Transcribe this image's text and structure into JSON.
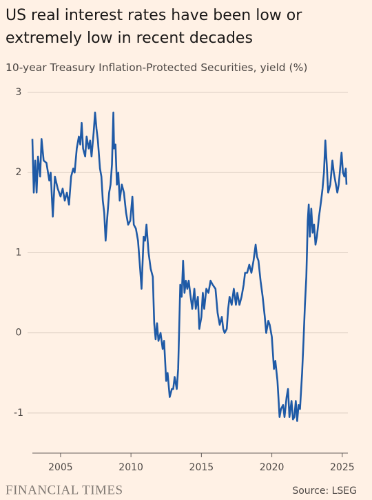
{
  "chart_data": {
    "type": "line",
    "title": "US real interest rates have been low or extremely low in recent decades",
    "subtitle": "10-year Treasury Inflation-Protected Securities, yield (%)",
    "source": "Source: LSEG",
    "brand": "FINANCIAL TIMES",
    "color": "#1f5aa6",
    "grid": true,
    "xlim": [
      2003,
      2025.4
    ],
    "xticks": [
      2005,
      2010,
      2015,
      2020,
      2025
    ],
    "ylim": [
      -1.5,
      3
    ],
    "yticks": [
      3,
      2,
      1,
      0,
      -1
    ],
    "x": [
      2003.0,
      2003.1,
      2003.2,
      2003.3,
      2003.4,
      2003.55,
      2003.65,
      2003.8,
      2004.0,
      2004.2,
      2004.3,
      2004.45,
      2004.6,
      2004.8,
      2005.0,
      2005.15,
      2005.3,
      2005.45,
      2005.6,
      2005.75,
      2005.9,
      2006.0,
      2006.15,
      2006.3,
      2006.4,
      2006.5,
      2006.6,
      2006.75,
      2006.85,
      2007.0,
      2007.1,
      2007.2,
      2007.35,
      2007.45,
      2007.55,
      2007.65,
      2007.8,
      2007.9,
      2008.0,
      2008.1,
      2008.2,
      2008.3,
      2008.45,
      2008.55,
      2008.65,
      2008.75,
      2008.8,
      2008.9,
      2009.0,
      2009.1,
      2009.2,
      2009.35,
      2009.5,
      2009.65,
      2009.8,
      2009.95,
      2010.1,
      2010.2,
      2010.35,
      2010.5,
      2010.65,
      2010.75,
      2010.9,
      2011.0,
      2011.1,
      2011.25,
      2011.4,
      2011.55,
      2011.65,
      2011.75,
      2011.85,
      2011.95,
      2012.1,
      2012.25,
      2012.35,
      2012.5,
      2012.6,
      2012.75,
      2012.9,
      2013.0,
      2013.1,
      2013.25,
      2013.35,
      2013.5,
      2013.6,
      2013.7,
      2013.8,
      2013.9,
      2014.0,
      2014.1,
      2014.2,
      2014.35,
      2014.5,
      2014.6,
      2014.75,
      2014.85,
      2015.0,
      2015.1,
      2015.2,
      2015.35,
      2015.5,
      2015.65,
      2015.8,
      2016.0,
      2016.15,
      2016.3,
      2016.45,
      2016.55,
      2016.65,
      2016.8,
      2016.9,
      2017.0,
      2017.15,
      2017.3,
      2017.45,
      2017.55,
      2017.7,
      2017.85,
      2018.0,
      2018.1,
      2018.25,
      2018.4,
      2018.55,
      2018.7,
      2018.85,
      2018.95,
      2019.05,
      2019.2,
      2019.35,
      2019.5,
      2019.6,
      2019.75,
      2019.85,
      2020.0,
      2020.15,
      2020.25,
      2020.4,
      2020.55,
      2020.65,
      2020.8,
      2020.9,
      2021.05,
      2021.15,
      2021.25,
      2021.4,
      2021.5,
      2021.6,
      2021.7,
      2021.8,
      2021.9,
      2022.0,
      2022.15,
      2022.25,
      2022.35,
      2022.45,
      2022.55,
      2022.62,
      2022.7,
      2022.8,
      2022.9,
      2023.0,
      2023.1,
      2023.2,
      2023.35,
      2023.5,
      2023.6,
      2023.7,
      2023.8,
      2023.9,
      2024.0,
      2024.15,
      2024.3,
      2024.4,
      2024.5,
      2024.65,
      2024.75,
      2024.85,
      2024.95,
      2025.05,
      2025.15,
      2025.25,
      2025.3
    ],
    "values": [
      2.42,
      1.75,
      2.15,
      1.75,
      2.2,
      1.95,
      2.42,
      2.15,
      2.12,
      1.9,
      2.0,
      1.45,
      1.95,
      1.8,
      1.7,
      1.8,
      1.65,
      1.75,
      1.6,
      1.95,
      2.05,
      2.0,
      2.3,
      2.45,
      2.35,
      2.62,
      2.3,
      2.2,
      2.45,
      2.3,
      2.4,
      2.2,
      2.5,
      2.75,
      2.55,
      2.4,
      2.05,
      1.95,
      1.65,
      1.5,
      1.15,
      1.4,
      1.75,
      1.85,
      2.1,
      2.75,
      2.3,
      2.35,
      1.85,
      2.0,
      1.65,
      1.85,
      1.75,
      1.5,
      1.35,
      1.4,
      1.7,
      1.35,
      1.3,
      1.15,
      0.8,
      0.55,
      1.2,
      1.15,
      1.35,
      1.0,
      0.8,
      0.7,
      0.12,
      -0.08,
      0.12,
      -0.1,
      0.0,
      -0.2,
      -0.1,
      -0.6,
      -0.5,
      -0.8,
      -0.7,
      -0.7,
      -0.55,
      -0.7,
      -0.45,
      0.6,
      0.45,
      0.9,
      0.5,
      0.65,
      0.55,
      0.65,
      0.5,
      0.3,
      0.55,
      0.3,
      0.45,
      0.05,
      0.2,
      0.5,
      0.3,
      0.55,
      0.5,
      0.65,
      0.6,
      0.55,
      0.25,
      0.1,
      0.2,
      0.05,
      0.0,
      0.05,
      0.3,
      0.45,
      0.35,
      0.55,
      0.35,
      0.5,
      0.35,
      0.45,
      0.6,
      0.75,
      0.75,
      0.85,
      0.75,
      0.9,
      1.1,
      0.95,
      0.9,
      0.65,
      0.45,
      0.2,
      0.0,
      0.15,
      0.1,
      -0.05,
      -0.45,
      -0.35,
      -0.6,
      -1.05,
      -0.95,
      -0.9,
      -1.05,
      -0.8,
      -0.7,
      -1.05,
      -0.85,
      -1.08,
      -1.05,
      -0.85,
      -1.1,
      -0.9,
      -0.95,
      -0.5,
      -0.1,
      0.35,
      0.7,
      1.4,
      1.6,
      1.2,
      1.55,
      1.25,
      1.35,
      1.1,
      1.2,
      1.45,
      1.65,
      1.8,
      2.0,
      2.4,
      2.1,
      1.75,
      1.85,
      2.15,
      2.0,
      1.9,
      1.75,
      1.85,
      2.05,
      2.25,
      2.0,
      1.95,
      2.05,
      1.85
    ]
  }
}
